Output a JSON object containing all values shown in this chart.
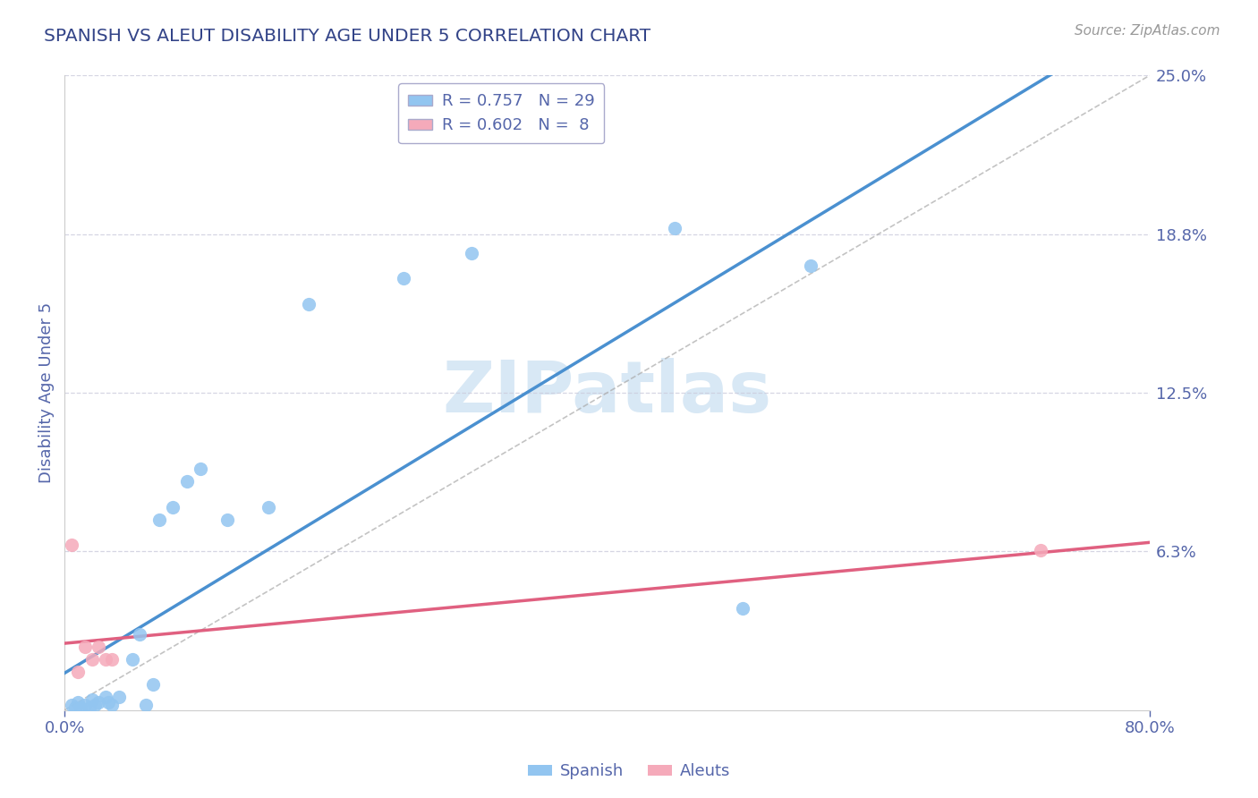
{
  "title": "SPANISH VS ALEUT DISABILITY AGE UNDER 5 CORRELATION CHART",
  "source_text": "Source: ZipAtlas.com",
  "ylabel": "Disability Age Under 5",
  "xlim": [
    0.0,
    0.8
  ],
  "ylim": [
    0.0,
    0.25
  ],
  "ytick_values": [
    0.0,
    0.0625,
    0.125,
    0.1875,
    0.25
  ],
  "ytick_labels": [
    "",
    "6.3%",
    "12.5%",
    "18.8%",
    "25.0%"
  ],
  "xtick_positions": [
    0.0,
    0.8
  ],
  "xtick_labels": [
    "0.0%",
    "80.0%"
  ],
  "spanish_color": "#92C5F0",
  "aleut_color": "#F5AABA",
  "regression_spanish_color": "#4A90D0",
  "regression_aleut_color": "#E06080",
  "R_spanish": 0.757,
  "N_spanish": 29,
  "R_aleut": 0.602,
  "N_aleut": 8,
  "spanish_x": [
    0.005,
    0.008,
    0.01,
    0.012,
    0.015,
    0.018,
    0.02,
    0.022,
    0.025,
    0.03,
    0.032,
    0.035,
    0.04,
    0.05,
    0.055,
    0.06,
    0.065,
    0.07,
    0.08,
    0.09,
    0.1,
    0.12,
    0.15,
    0.18,
    0.25,
    0.3,
    0.45,
    0.5,
    0.55
  ],
  "spanish_y": [
    0.002,
    0.001,
    0.003,
    0.001,
    0.002,
    0.001,
    0.004,
    0.002,
    0.003,
    0.005,
    0.003,
    0.002,
    0.005,
    0.02,
    0.03,
    0.002,
    0.01,
    0.075,
    0.08,
    0.09,
    0.095,
    0.075,
    0.08,
    0.16,
    0.17,
    0.18,
    0.19,
    0.04,
    0.175
  ],
  "aleut_x": [
    0.005,
    0.01,
    0.015,
    0.02,
    0.025,
    0.03,
    0.035,
    0.72
  ],
  "aleut_y": [
    0.065,
    0.015,
    0.025,
    0.02,
    0.025,
    0.02,
    0.02,
    0.063
  ],
  "ref_line_color": "#AAAAAA",
  "watermark_color": "#D8E8F5",
  "grid_color": "#CCCCDD",
  "title_color": "#334488",
  "label_color": "#5566AA",
  "source_color": "#999999"
}
